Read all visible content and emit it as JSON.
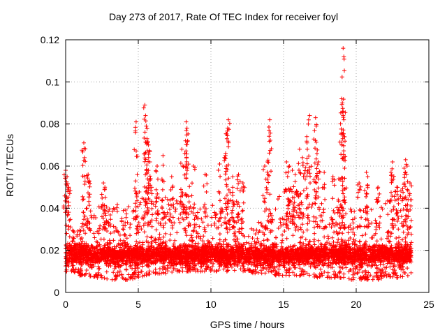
{
  "chart_data": {
    "type": "scatter",
    "title": "Day 273 of 2017, Rate Of TEC Index for receiver foyl",
    "xlabel": "GPS time / hours",
    "ylabel": "ROTI / TECUs",
    "xlim": [
      0,
      25
    ],
    "ylim": [
      0,
      0.12
    ],
    "x_ticks": [
      "0",
      "5",
      "10",
      "15",
      "20",
      "25"
    ],
    "y_ticks": [
      "0",
      "0.02",
      "0.04",
      "0.06",
      "0.08",
      "0.1",
      "0.12"
    ],
    "grid": true,
    "marker": "+",
    "marker_color": "#ff0000",
    "baseline_envelope": {
      "x_hours": [
        0,
        0.5,
        1,
        1.5,
        2,
        2.5,
        3,
        3.5,
        4,
        4.5,
        5,
        5.5,
        6,
        6.5,
        7,
        7.5,
        8,
        8.5,
        9,
        9.5,
        10,
        10.5,
        11,
        11.5,
        12,
        12.5,
        13,
        13.5,
        14,
        14.5,
        15,
        15.5,
        16,
        16.5,
        17,
        17.5,
        18,
        18.5,
        19,
        19.5,
        20,
        20.5,
        21,
        21.5,
        22,
        22.5,
        23,
        23.5
      ],
      "roti_low": [
        0.01,
        0.01,
        0.008,
        0.008,
        0.007,
        0.007,
        0.006,
        0.006,
        0.006,
        0.006,
        0.007,
        0.008,
        0.009,
        0.009,
        0.009,
        0.01,
        0.01,
        0.01,
        0.01,
        0.01,
        0.01,
        0.01,
        0.01,
        0.01,
        0.01,
        0.01,
        0.009,
        0.009,
        0.009,
        0.008,
        0.008,
        0.008,
        0.008,
        0.008,
        0.007,
        0.007,
        0.007,
        0.007,
        0.007,
        0.006,
        0.006,
        0.006,
        0.006,
        0.006,
        0.007,
        0.007,
        0.007,
        0.008
      ],
      "roti_high": [
        0.035,
        0.03,
        0.032,
        0.035,
        0.04,
        0.042,
        0.04,
        0.042,
        0.042,
        0.042,
        0.05,
        0.055,
        0.05,
        0.048,
        0.045,
        0.045,
        0.048,
        0.045,
        0.04,
        0.04,
        0.042,
        0.04,
        0.045,
        0.05,
        0.045,
        0.035,
        0.032,
        0.035,
        0.04,
        0.045,
        0.05,
        0.05,
        0.05,
        0.05,
        0.055,
        0.052,
        0.045,
        0.042,
        0.045,
        0.042,
        0.04,
        0.04,
        0.04,
        0.045,
        0.045,
        0.048,
        0.05,
        0.045
      ]
    },
    "peaks": [
      {
        "x": 0.0,
        "y": 0.058
      },
      {
        "x": 0.1,
        "y": 0.055
      },
      {
        "x": 0.2,
        "y": 0.05
      },
      {
        "x": 1.25,
        "y": 0.071
      },
      {
        "x": 1.3,
        "y": 0.064
      },
      {
        "x": 1.55,
        "y": 0.056
      },
      {
        "x": 1.6,
        "y": 0.053
      },
      {
        "x": 2.6,
        "y": 0.052
      },
      {
        "x": 2.7,
        "y": 0.05
      },
      {
        "x": 4.8,
        "y": 0.076
      },
      {
        "x": 4.85,
        "y": 0.081
      },
      {
        "x": 5.45,
        "y": 0.089
      },
      {
        "x": 5.5,
        "y": 0.084
      },
      {
        "x": 5.55,
        "y": 0.079
      },
      {
        "x": 5.6,
        "y": 0.073
      },
      {
        "x": 5.7,
        "y": 0.07
      },
      {
        "x": 5.8,
        "y": 0.062
      },
      {
        "x": 6.3,
        "y": 0.06
      },
      {
        "x": 6.7,
        "y": 0.065
      },
      {
        "x": 7.3,
        "y": 0.055
      },
      {
        "x": 8.0,
        "y": 0.068
      },
      {
        "x": 8.2,
        "y": 0.066
      },
      {
        "x": 8.3,
        "y": 0.081
      },
      {
        "x": 8.35,
        "y": 0.078
      },
      {
        "x": 8.4,
        "y": 0.072
      },
      {
        "x": 8.8,
        "y": 0.06
      },
      {
        "x": 9.6,
        "y": 0.056
      },
      {
        "x": 10.6,
        "y": 0.061
      },
      {
        "x": 11.0,
        "y": 0.065
      },
      {
        "x": 11.1,
        "y": 0.073
      },
      {
        "x": 11.15,
        "y": 0.078
      },
      {
        "x": 11.2,
        "y": 0.082
      },
      {
        "x": 11.5,
        "y": 0.055
      },
      {
        "x": 11.9,
        "y": 0.056
      },
      {
        "x": 12.2,
        "y": 0.052
      },
      {
        "x": 13.7,
        "y": 0.06
      },
      {
        "x": 13.9,
        "y": 0.062
      },
      {
        "x": 14.0,
        "y": 0.077
      },
      {
        "x": 14.05,
        "y": 0.082
      },
      {
        "x": 15.2,
        "y": 0.062
      },
      {
        "x": 15.4,
        "y": 0.06
      },
      {
        "x": 15.6,
        "y": 0.058
      },
      {
        "x": 15.8,
        "y": 0.056
      },
      {
        "x": 16.1,
        "y": 0.068
      },
      {
        "x": 16.3,
        "y": 0.064
      },
      {
        "x": 16.6,
        "y": 0.074
      },
      {
        "x": 16.7,
        "y": 0.08
      },
      {
        "x": 16.8,
        "y": 0.084
      },
      {
        "x": 17.2,
        "y": 0.083
      },
      {
        "x": 17.25,
        "y": 0.079
      },
      {
        "x": 17.4,
        "y": 0.062
      },
      {
        "x": 17.8,
        "y": 0.057
      },
      {
        "x": 18.4,
        "y": 0.055
      },
      {
        "x": 18.8,
        "y": 0.054
      },
      {
        "x": 19.0,
        "y": 0.092
      },
      {
        "x": 19.05,
        "y": 0.09
      },
      {
        "x": 19.1,
        "y": 0.116
      },
      {
        "x": 19.15,
        "y": 0.112
      },
      {
        "x": 19.1,
        "y": 0.084
      },
      {
        "x": 19.15,
        "y": 0.082
      },
      {
        "x": 19.2,
        "y": 0.059
      },
      {
        "x": 20.2,
        "y": 0.052
      },
      {
        "x": 20.7,
        "y": 0.057
      },
      {
        "x": 20.8,
        "y": 0.055
      },
      {
        "x": 21.5,
        "y": 0.05
      },
      {
        "x": 22.4,
        "y": 0.057
      },
      {
        "x": 22.5,
        "y": 0.062
      },
      {
        "x": 22.8,
        "y": 0.05
      },
      {
        "x": 23.3,
        "y": 0.059
      },
      {
        "x": 23.4,
        "y": 0.063
      },
      {
        "x": 23.5,
        "y": 0.06
      },
      {
        "x": 23.7,
        "y": 0.052
      }
    ]
  }
}
